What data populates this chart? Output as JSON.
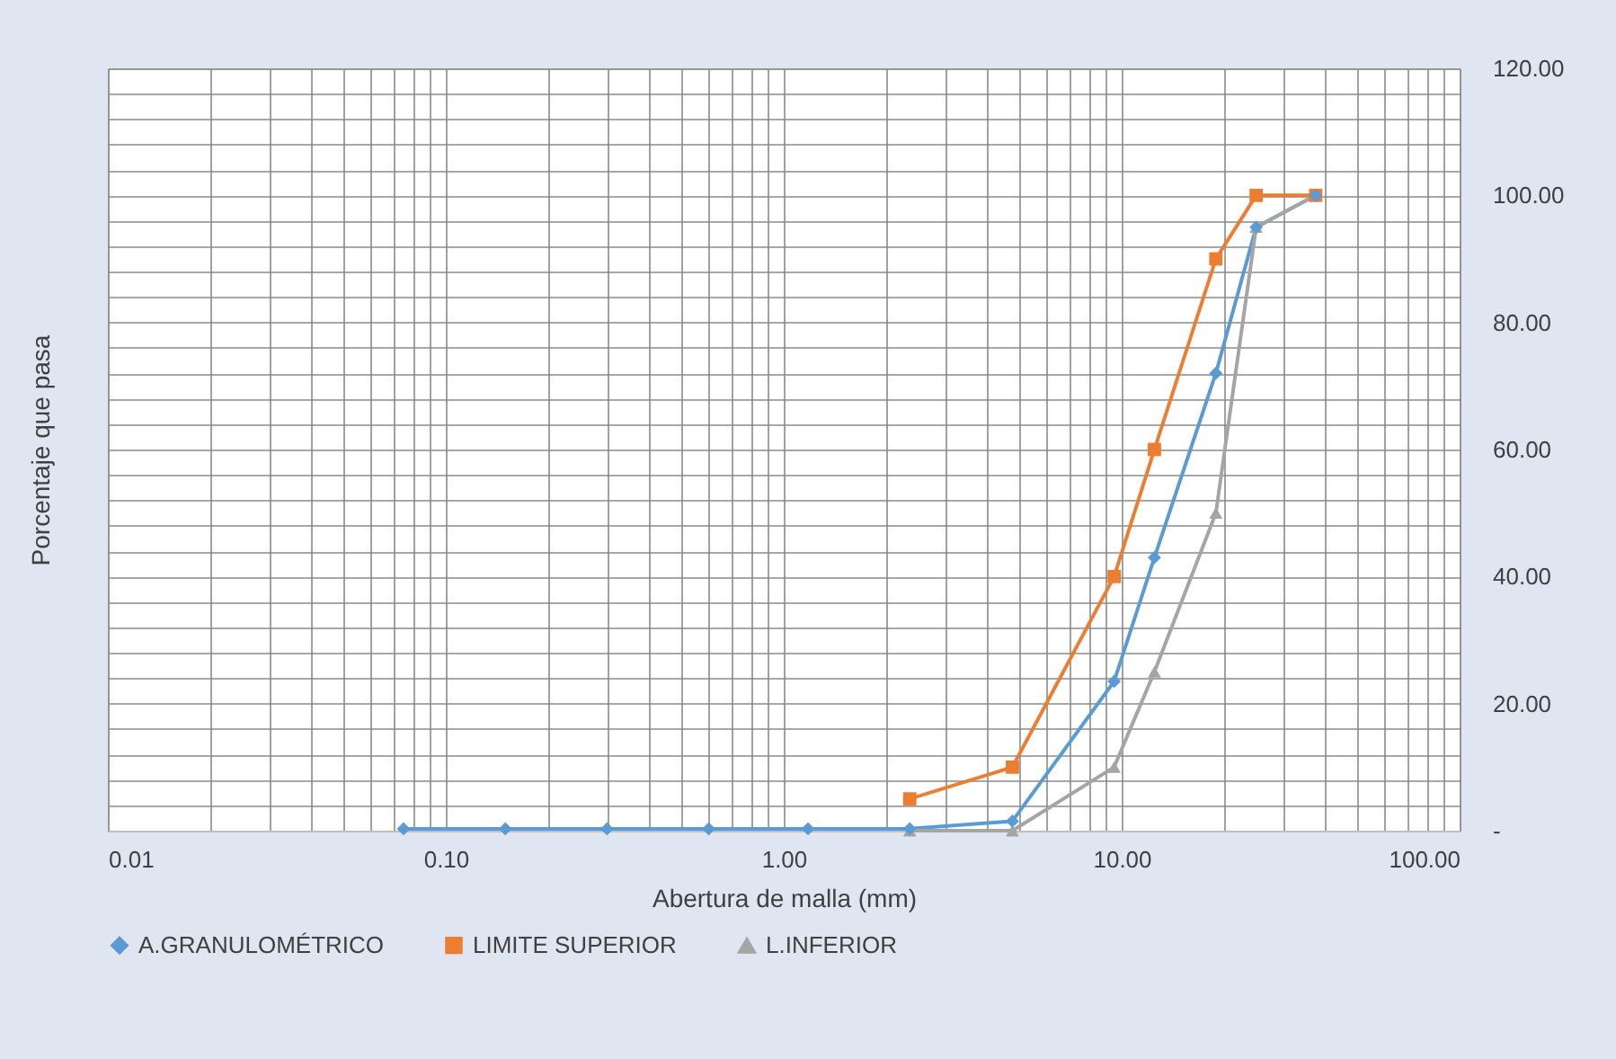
{
  "chart_data": {
    "type": "line",
    "xlabel": "Abertura de malla (mm)",
    "ylabel": "Porcentaje que pasa",
    "log": "x",
    "x": [
      0.075,
      0.15,
      0.3,
      0.6,
      1.18,
      2.36,
      4.75,
      9.5,
      12.5,
      19,
      25,
      37.5
    ],
    "series": [
      {
        "name": "A.GRANULOMÉTRICO",
        "color": "#5b9bd5",
        "marker": "diamond",
        "values": [
          0.3,
          0.3,
          0.3,
          0.3,
          0.3,
          0.3,
          1.5,
          23.5,
          43,
          72,
          95,
          100
        ]
      },
      {
        "name": "LIMITE SUPERIOR",
        "color": "#ed7d31",
        "marker": "square",
        "values": [
          null,
          null,
          null,
          null,
          null,
          5,
          10,
          40,
          60,
          90,
          100,
          100
        ]
      },
      {
        "name": "L.INFERIOR",
        "color": "#a5a5a5",
        "marker": "triangle",
        "values": [
          null,
          null,
          null,
          null,
          null,
          0,
          0,
          10,
          25,
          50,
          95,
          100
        ]
      }
    ],
    "xlim": [
      0.01,
      100
    ],
    "xticks": [
      {
        "value": 0.01,
        "label": "0.01"
      },
      {
        "value": 0.02,
        "label": null
      },
      {
        "value": 0.03,
        "label": null
      },
      {
        "value": 0.04,
        "label": null
      },
      {
        "value": 0.05,
        "label": null
      },
      {
        "value": 0.06,
        "label": null
      },
      {
        "value": 0.07,
        "label": null
      },
      {
        "value": 0.08,
        "label": null
      },
      {
        "value": 0.09,
        "label": null
      },
      {
        "value": 0.1,
        "label": "0.10"
      },
      {
        "value": 0.2,
        "label": null
      },
      {
        "value": 0.3,
        "label": null
      },
      {
        "value": 0.4,
        "label": null
      },
      {
        "value": 0.5,
        "label": null
      },
      {
        "value": 0.6,
        "label": null
      },
      {
        "value": 0.7,
        "label": null
      },
      {
        "value": 0.8,
        "label": null
      },
      {
        "value": 0.9,
        "label": null
      },
      {
        "value": 1,
        "label": "1.00"
      },
      {
        "value": 2,
        "label": null
      },
      {
        "value": 3,
        "label": null
      },
      {
        "value": 4,
        "label": null
      },
      {
        "value": 5,
        "label": null
      },
      {
        "value": 6,
        "label": null
      },
      {
        "value": 7,
        "label": null
      },
      {
        "value": 8,
        "label": null
      },
      {
        "value": 9,
        "label": null
      },
      {
        "value": 10,
        "label": "10.00"
      },
      {
        "value": 20,
        "label": null
      },
      {
        "value": 30,
        "label": null
      },
      {
        "value": 40,
        "label": null
      },
      {
        "value": 50,
        "label": null
      },
      {
        "value": 60,
        "label": null
      },
      {
        "value": 70,
        "label": null
      },
      {
        "value": 80,
        "label": null
      },
      {
        "value": 90,
        "label": null
      },
      {
        "value": 100,
        "label": "100.00"
      }
    ],
    "ylim": [
      0,
      120
    ],
    "yticks": [
      {
        "value": 0,
        "label": "-"
      },
      {
        "value": 4,
        "label": null
      },
      {
        "value": 8,
        "label": null
      },
      {
        "value": 12,
        "label": null
      },
      {
        "value": 16,
        "label": null
      },
      {
        "value": 20,
        "label": "20.00"
      },
      {
        "value": 24,
        "label": null
      },
      {
        "value": 28,
        "label": null
      },
      {
        "value": 32,
        "label": null
      },
      {
        "value": 36,
        "label": null
      },
      {
        "value": 40,
        "label": "40.00"
      },
      {
        "value": 44,
        "label": null
      },
      {
        "value": 48,
        "label": null
      },
      {
        "value": 52,
        "label": null
      },
      {
        "value": 56,
        "label": null
      },
      {
        "value": 60,
        "label": "60.00"
      },
      {
        "value": 64,
        "label": null
      },
      {
        "value": 68,
        "label": null
      },
      {
        "value": 72,
        "label": null
      },
      {
        "value": 76,
        "label": null
      },
      {
        "value": 80,
        "label": "80.00"
      },
      {
        "value": 84,
        "label": null
      },
      {
        "value": 88,
        "label": null
      },
      {
        "value": 92,
        "label": null
      },
      {
        "value": 96,
        "label": null
      },
      {
        "value": 100,
        "label": "100.00"
      },
      {
        "value": 104,
        "label": null
      },
      {
        "value": 108,
        "label": null
      },
      {
        "value": 112,
        "label": null
      },
      {
        "value": 116,
        "label": null
      },
      {
        "value": 120,
        "label": "120.00"
      }
    ],
    "grid": true,
    "legend": "bottom",
    "line_style": "solid"
  }
}
